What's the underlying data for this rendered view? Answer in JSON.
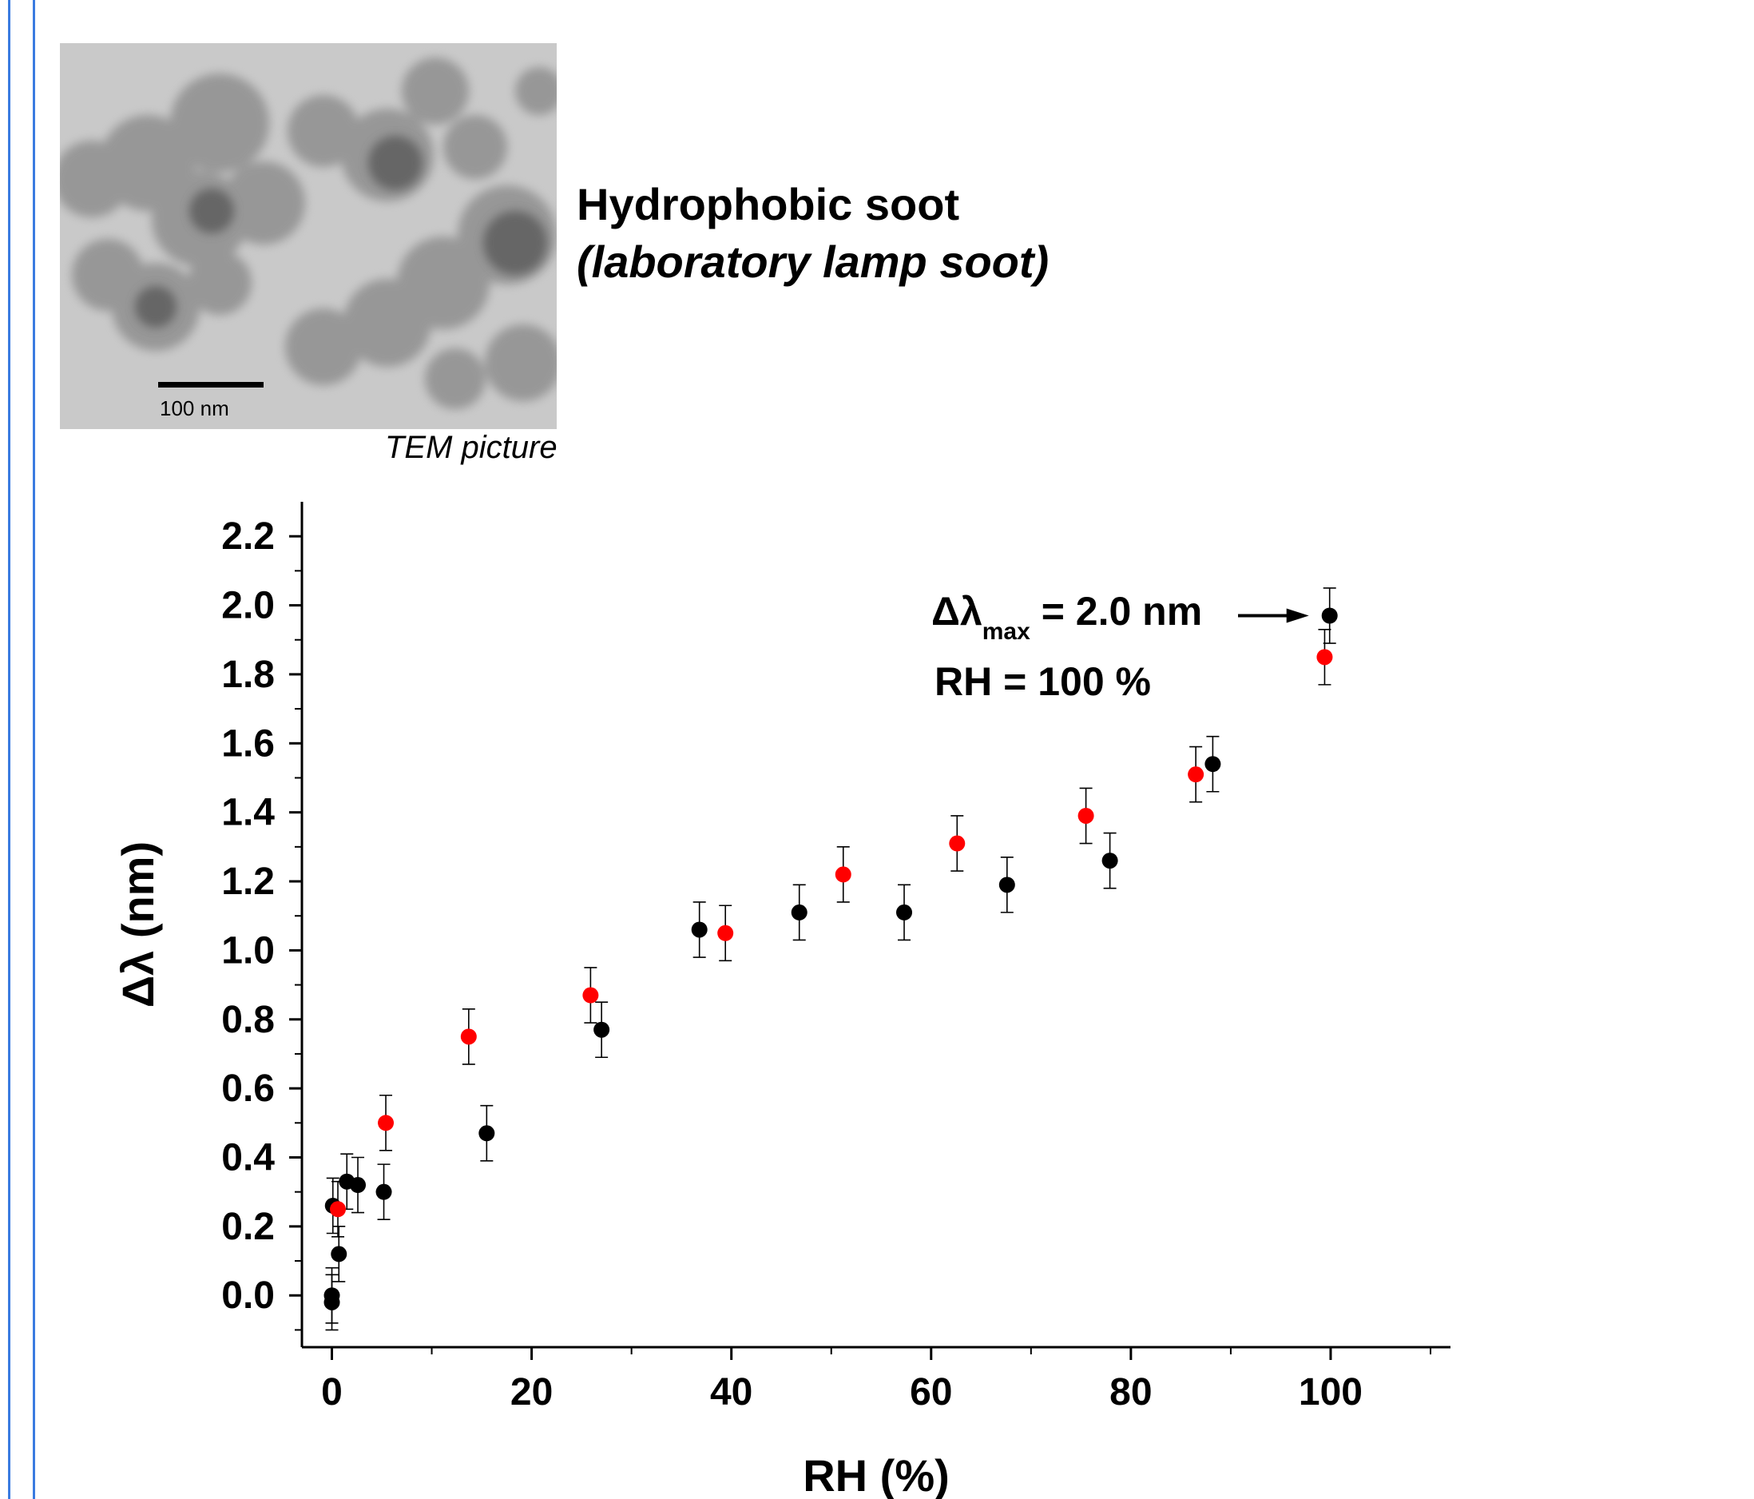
{
  "figure": {
    "title_line1": "Hydrophobic soot",
    "title_line2": "(laboratory lamp soot)",
    "image_caption": "TEM picture",
    "scale_bar_label": "100 nm"
  },
  "colors": {
    "frame": "#3a7be0",
    "series_black": "#000000",
    "series_red": "#ff0000"
  },
  "chart_data": {
    "type": "scatter",
    "xlabel": "RH (%)",
    "ylabel": "Δλ (nm)",
    "xlim": [
      -3,
      112
    ],
    "ylim": [
      -0.15,
      2.3
    ],
    "xticks": [
      0,
      20,
      40,
      60,
      80,
      100
    ],
    "yticks": [
      0.0,
      0.2,
      0.4,
      0.6,
      0.8,
      1.0,
      1.2,
      1.4,
      1.6,
      1.8,
      2.0,
      2.2
    ],
    "grid": false,
    "series": [
      {
        "color": "#000000",
        "points": [
          {
            "x": 0.0,
            "y": 0.0,
            "err": 0.08
          },
          {
            "x": 0.0,
            "y": -0.02,
            "err": 0.08
          },
          {
            "x": 0.1,
            "y": 0.26,
            "err": 0.08
          },
          {
            "x": 0.7,
            "y": 0.12,
            "err": 0.08
          },
          {
            "x": 1.5,
            "y": 0.33,
            "err": 0.08
          },
          {
            "x": 2.6,
            "y": 0.32,
            "err": 0.08
          },
          {
            "x": 5.2,
            "y": 0.3,
            "err": 0.08
          },
          {
            "x": 15.5,
            "y": 0.47,
            "err": 0.08
          },
          {
            "x": 27.0,
            "y": 0.77,
            "err": 0.08
          },
          {
            "x": 36.8,
            "y": 1.06,
            "err": 0.08
          },
          {
            "x": 46.8,
            "y": 1.11,
            "err": 0.08
          },
          {
            "x": 57.3,
            "y": 1.11,
            "err": 0.08
          },
          {
            "x": 67.6,
            "y": 1.19,
            "err": 0.08
          },
          {
            "x": 77.9,
            "y": 1.26,
            "err": 0.08
          },
          {
            "x": 88.2,
            "y": 1.54,
            "err": 0.08
          },
          {
            "x": 99.9,
            "y": 1.97,
            "err": 0.08
          }
        ]
      },
      {
        "color": "#ff0000",
        "points": [
          {
            "x": 0.6,
            "y": 0.25,
            "err": 0.08
          },
          {
            "x": 5.4,
            "y": 0.5,
            "err": 0.08
          },
          {
            "x": 13.7,
            "y": 0.75,
            "err": 0.08
          },
          {
            "x": 25.9,
            "y": 0.87,
            "err": 0.08
          },
          {
            "x": 39.4,
            "y": 1.05,
            "err": 0.08
          },
          {
            "x": 51.2,
            "y": 1.22,
            "err": 0.08
          },
          {
            "x": 62.6,
            "y": 1.31,
            "err": 0.08
          },
          {
            "x": 75.5,
            "y": 1.39,
            "err": 0.08
          },
          {
            "x": 86.5,
            "y": 1.51,
            "err": 0.08
          },
          {
            "x": 99.4,
            "y": 1.85,
            "err": 0.08
          }
        ]
      }
    ],
    "annotation": {
      "line1_prefix": "Δλ",
      "line1_sub": "max",
      "line1_suffix": " = 2.0 nm",
      "line2": "RH = 100 %",
      "arrow_target": {
        "x": 99.9,
        "y": 1.97
      }
    }
  }
}
